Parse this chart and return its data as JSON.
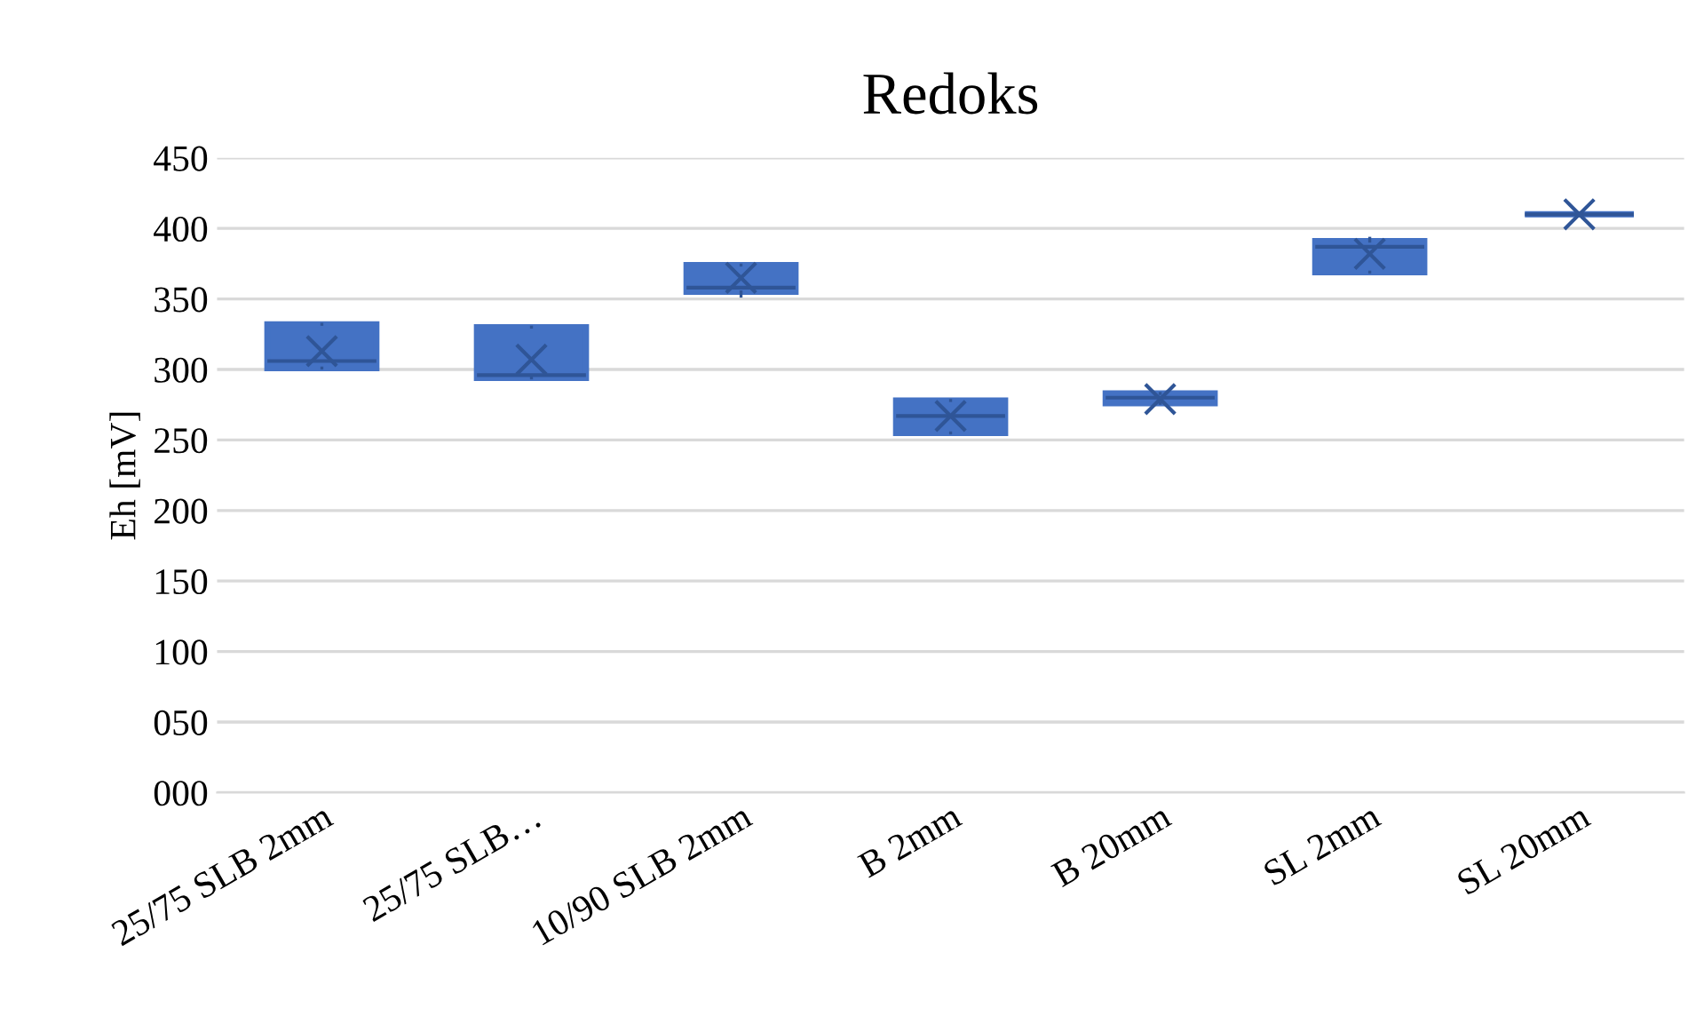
{
  "chart_data": {
    "type": "box",
    "title": "Redoks",
    "ylabel": "Eh [mV]",
    "categories": [
      "25/75 SLB 2mm",
      "25/75 SLB…",
      "10/90 SLB 2mm",
      "B 2mm",
      "B 20mm",
      "SL 2mm",
      "SL 20mm"
    ],
    "color": "#4472c4",
    "boxes": [
      {
        "low": 301,
        "q1": 301,
        "median": 306,
        "q3": 332,
        "high": 332,
        "mean": 313
      },
      {
        "low": 294,
        "q1": 294,
        "median": 296,
        "q3": 330,
        "high": 330,
        "mean": 307
      },
      {
        "low": 352,
        "q1": 355,
        "median": 358,
        "q3": 374,
        "high": 374,
        "mean": 365
      },
      {
        "low": 255,
        "q1": 255,
        "median": 267,
        "q3": 278,
        "high": 278,
        "mean": 267
      },
      {
        "low": 276,
        "q1": 276,
        "median": 280,
        "q3": 283,
        "high": 283,
        "mean": 279
      },
      {
        "low": 369,
        "q1": 369,
        "median": 387,
        "q3": 391,
        "high": 393,
        "mean": 382
      },
      {
        "low": 410,
        "q1": 410,
        "median": 410,
        "q3": 410,
        "high": 410,
        "mean": 410
      }
    ],
    "ylim": [
      0,
      450
    ],
    "yticks": [
      {
        "value": 0,
        "label": "000"
      },
      {
        "value": 50,
        "label": "050"
      },
      100,
      150,
      200,
      250,
      300,
      350,
      400,
      450
    ],
    "grid": "y"
  }
}
